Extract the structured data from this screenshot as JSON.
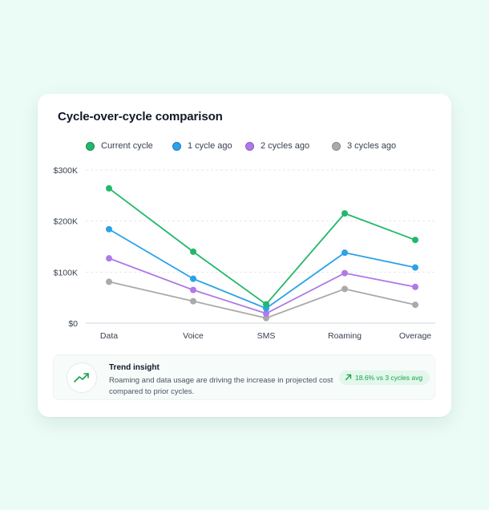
{
  "card": {
    "title": "Cycle-over-cycle comparison"
  },
  "colors": {
    "current": "#22b86b",
    "one_ago": "#2ba2ea",
    "two_ago": "#b07ae6",
    "three_ago": "#aaaaaa"
  },
  "chart_data": {
    "type": "line",
    "title": "Cycle-over-cycle comparison",
    "categories": [
      "Data",
      "Voice",
      "SMS",
      "Roaming",
      "Overage"
    ],
    "ylim": [
      0,
      300000
    ],
    "yticks": [
      0,
      100000,
      200000,
      300000
    ],
    "ytick_labels": [
      "$0",
      "$100K",
      "$200K",
      "$300K"
    ],
    "grid": true,
    "legend_position": "top",
    "series": [
      {
        "name": "Current cycle",
        "color": "#22b86b",
        "values": [
          264000,
          140000,
          37000,
          215000,
          163000
        ]
      },
      {
        "name": "1 cycle ago",
        "color": "#2ba2ea",
        "values": [
          184000,
          87000,
          29000,
          138000,
          109000
        ]
      },
      {
        "name": "2 cycles ago",
        "color": "#b07ae6",
        "values": [
          127000,
          65000,
          19000,
          98000,
          71000
        ]
      },
      {
        "name": "3 cycles ago",
        "color": "#aaaaaa",
        "values": [
          81000,
          43000,
          10000,
          67000,
          36000
        ]
      }
    ]
  },
  "insight": {
    "icon": "trend-up-icon",
    "title": "Trend insight",
    "text": "Roaming and data usage are driving the increase in projected cost compared to prior cycles.",
    "badge": "18.6% vs 3 cycles avg"
  }
}
